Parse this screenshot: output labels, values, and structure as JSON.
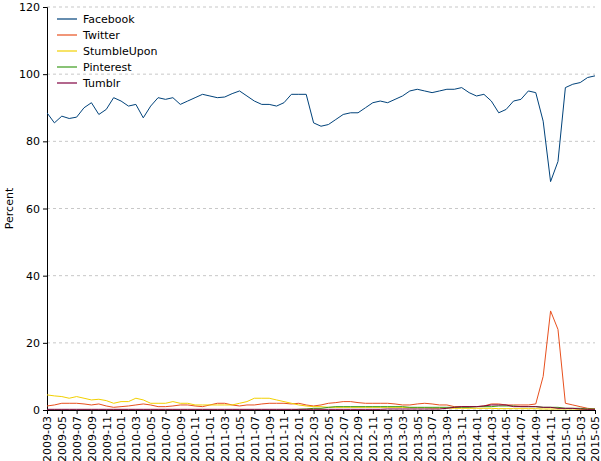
{
  "chart_data": {
    "type": "line",
    "y_label": "Percent",
    "categories": [
      "2009-03",
      null,
      "2009-05",
      null,
      "2009-07",
      null,
      "2009-09",
      null,
      "2009-11",
      null,
      "2010-01",
      null,
      "2010-03",
      null,
      "2010-05",
      null,
      "2010-07",
      null,
      "2010-09",
      null,
      "2010-11",
      null,
      "2011-01",
      null,
      "2011-03",
      null,
      "2011-05",
      null,
      "2011-07",
      null,
      "2011-09",
      null,
      "2011-11",
      null,
      "2012-01",
      null,
      "2012-03",
      null,
      "2012-05",
      null,
      "2012-07",
      null,
      "2012-09",
      null,
      "2012-11",
      null,
      "2013-01",
      null,
      "2013-03",
      null,
      "2013-05",
      null,
      "2013-07",
      null,
      "2013-09",
      null,
      "2013-11",
      null,
      "2014-01",
      null,
      "2014-03",
      null,
      "2014-05",
      null,
      "2014-07",
      null,
      "2014-09",
      null,
      "2014-11",
      null,
      "2015-01",
      null,
      "2015-03",
      null,
      "2015-05"
    ],
    "series": [
      {
        "name": "Facebook",
        "color": "#00427a",
        "values": [
          88.5,
          85.5,
          87.5,
          86.8,
          87.2,
          90,
          91.5,
          88,
          89.5,
          93,
          92,
          90.5,
          91,
          87,
          90.5,
          93,
          92.5,
          93,
          91,
          92,
          93,
          94,
          93.5,
          93,
          93.2,
          94.2,
          95,
          93.5,
          92,
          91,
          91,
          90.5,
          91.5,
          94,
          94,
          94,
          85.5,
          84.5,
          85,
          86.5,
          88,
          88.5,
          88.5,
          90,
          91.5,
          92,
          91.5,
          92.5,
          93.5,
          95,
          95.5,
          95,
          94.5,
          95,
          95.5,
          95.5,
          96,
          94.5,
          93.5,
          94,
          92,
          88.5,
          89.5,
          92,
          92.5,
          95,
          94.5,
          86,
          68,
          74,
          96,
          97,
          97.5,
          99,
          99.5
        ]
      },
      {
        "name": "Twitter",
        "color": "#e8501e",
        "values": [
          1.2,
          1.5,
          2,
          2,
          2,
          1.8,
          1.5,
          1.8,
          1.2,
          0.8,
          1,
          1.2,
          1.5,
          1.8,
          1.5,
          1,
          1,
          1.2,
          1.5,
          1.5,
          1.2,
          1,
          1.5,
          2,
          2,
          1.5,
          1.2,
          1.5,
          1.5,
          1.8,
          2,
          2,
          2,
          1.8,
          2,
          1.5,
          1.2,
          1.5,
          2,
          2.2,
          2.5,
          2.5,
          2.2,
          2,
          2,
          2,
          2,
          1.8,
          1.5,
          1.5,
          1.8,
          2,
          1.8,
          1.5,
          1.5,
          1,
          1,
          1,
          1,
          1.2,
          1.8,
          1.8,
          1.5,
          1.5,
          1.5,
          1.5,
          1.8,
          10,
          29.5,
          24,
          2,
          1.5,
          1,
          0.5,
          0.3
        ]
      },
      {
        "name": "StumbleUpon",
        "color": "#f2d000",
        "values": [
          4.5,
          4.2,
          4,
          3.5,
          4,
          3.5,
          3,
          3.2,
          2.8,
          2,
          2.5,
          2.5,
          3.5,
          3,
          2,
          2,
          2,
          2.5,
          2,
          2,
          1.5,
          1.5,
          1.5,
          1.5,
          1.5,
          1.5,
          2,
          2.5,
          3.5,
          3.5,
          3.5,
          3,
          2.5,
          2,
          1.5,
          1.2,
          1,
          1,
          0.8,
          0.8,
          0.8,
          0.8,
          0.8,
          0.8,
          0.8,
          0.8,
          0.8,
          0.8,
          0.8,
          0.7,
          0.7,
          0.7,
          0.6,
          0.6,
          0.6,
          0.5,
          0.5,
          0.5,
          0.5,
          0.5,
          0.5,
          0.4,
          0.4,
          0.4,
          0.4,
          0.4,
          0.4,
          0.3,
          0.3,
          0.3,
          0.3,
          0.3,
          0.2,
          0.2,
          0.2
        ]
      },
      {
        "name": "Pinterest",
        "color": "#3a9a1a",
        "values": [
          0,
          0,
          0,
          0,
          0,
          0,
          0,
          0,
          0,
          0,
          0,
          0,
          0,
          0,
          0,
          0,
          0,
          0,
          0,
          0,
          0,
          0,
          0,
          0,
          0,
          0,
          0,
          0,
          0,
          0,
          0,
          0,
          0,
          0,
          0.2,
          0.3,
          0.5,
          0.5,
          0.8,
          1,
          1,
          1,
          1,
          1,
          1,
          1,
          1,
          1,
          1,
          0.8,
          0.8,
          0.8,
          0.8,
          0.8,
          0.8,
          0.8,
          0.8,
          0.8,
          1,
          1,
          1,
          1.2,
          1.2,
          1.2,
          1,
          1,
          1,
          0.8,
          0.8,
          0.8,
          0.5,
          0.5,
          0.5,
          0.3,
          0.3
        ]
      },
      {
        "name": "Tumblr",
        "color": "#800040",
        "values": [
          0.2,
          0.2,
          0.2,
          0.2,
          0.2,
          0.2,
          0.2,
          0.2,
          0.2,
          0.2,
          0.2,
          0.2,
          0.2,
          0.2,
          0.2,
          0.2,
          0.2,
          0.2,
          0.2,
          0.2,
          0.2,
          0.2,
          0.2,
          0.2,
          0.2,
          0.2,
          0.2,
          0.2,
          0.2,
          0.2,
          0.2,
          0.2,
          0.2,
          0.2,
          0.2,
          0.2,
          0.2,
          0.2,
          0.2,
          0.2,
          0.2,
          0.2,
          0.2,
          0.2,
          0.2,
          0.2,
          0.3,
          0.3,
          0.3,
          0.3,
          0.3,
          0.3,
          0.3,
          0.3,
          0.5,
          0.8,
          1,
          1,
          1,
          1.2,
          1.5,
          1.5,
          1.5,
          1,
          1,
          1,
          1,
          0.8,
          0.8,
          0.5,
          0.5,
          0.5,
          0.3,
          0.2,
          0.2
        ]
      }
    ],
    "ylim": [
      0,
      120
    ],
    "yticks": [
      0,
      20,
      40,
      60,
      80,
      100,
      120
    ],
    "grid": true,
    "legend": "upper left"
  }
}
